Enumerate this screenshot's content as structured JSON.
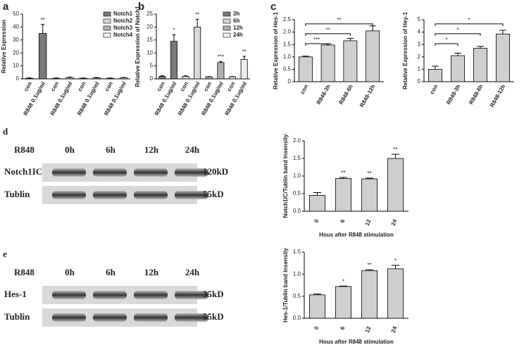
{
  "chart_data": [
    {
      "type": "bar",
      "panel": "a",
      "ylabel": "Relative Expression",
      "categories": [
        "con",
        "R848 0.1ug/ml",
        "con",
        "R848 0.1ug/ml",
        "con",
        "R848 0.1ug/ml",
        "con",
        "R848 0.1ug/ml"
      ],
      "series": [
        {
          "name": "Notch1",
          "color": "#7a7a7a",
          "values": [
            0.5,
            35,
            null,
            null,
            null,
            null,
            null,
            null
          ],
          "errors": [
            0.3,
            7,
            null,
            null,
            null,
            null,
            null,
            null
          ]
        },
        {
          "name": "Notch2",
          "color": "#d8d8d8",
          "values": [
            null,
            null,
            0.5,
            1,
            null,
            null,
            null,
            null
          ],
          "errors": [
            null,
            null,
            0.2,
            0.4,
            null,
            null,
            null,
            null
          ]
        },
        {
          "name": "Notch3",
          "color": "#b0b0b0",
          "values": [
            null,
            null,
            null,
            null,
            0.5,
            0.8,
            null,
            null
          ],
          "errors": [
            null,
            null,
            null,
            null,
            0.2,
            0.3,
            null,
            null
          ]
        },
        {
          "name": "Notch4",
          "color": "#efefef",
          "values": [
            null,
            null,
            null,
            null,
            null,
            null,
            0.5,
            0.8
          ],
          "errors": [
            null,
            null,
            null,
            null,
            null,
            null,
            0.2,
            0.3
          ]
        }
      ],
      "significance": [
        null,
        "**",
        null,
        null,
        null,
        null,
        null,
        null
      ],
      "ylim": [
        0,
        50
      ],
      "yticks": [
        0,
        10,
        20,
        30,
        40,
        50
      ],
      "legend": "upper right"
    },
    {
      "type": "bar",
      "panel": "b",
      "ylabel": "Relative Expression of Notch1",
      "categories": [
        "con",
        "R848 0.1ug/ml",
        "con",
        "R848 0.1ug/ml",
        "con",
        "R848 0.1ug/ml",
        "con",
        "R848 0.1ug/ml"
      ],
      "series": [
        {
          "name": "3h",
          "color": "#7a7a7a",
          "values": [
            1,
            14.5,
            null,
            null,
            null,
            null,
            null,
            null
          ],
          "errors": [
            0.2,
            2.5,
            null,
            null,
            null,
            null,
            null,
            null
          ]
        },
        {
          "name": "6h",
          "color": "#d8d8d8",
          "values": [
            null,
            null,
            1,
            20,
            null,
            null,
            null,
            null
          ],
          "errors": [
            null,
            null,
            0.2,
            3,
            null,
            null,
            null,
            null
          ]
        },
        {
          "name": "12h",
          "color": "#b0b0b0",
          "values": [
            null,
            null,
            null,
            null,
            0.8,
            6.3,
            null,
            null
          ],
          "errors": [
            null,
            null,
            null,
            null,
            0.1,
            0.4,
            null,
            null
          ]
        },
        {
          "name": "24h",
          "color": "#efefef",
          "values": [
            null,
            null,
            null,
            null,
            null,
            null,
            0.8,
            7.5
          ],
          "errors": [
            null,
            null,
            null,
            null,
            null,
            null,
            0.1,
            1.2
          ]
        }
      ],
      "significance": [
        null,
        "*",
        null,
        "**",
        null,
        "***",
        null,
        "**"
      ],
      "ylim": [
        0,
        25
      ],
      "yticks": [
        0,
        5,
        10,
        15,
        20,
        25
      ],
      "legend": "upper right"
    },
    {
      "type": "bar",
      "panel": "c",
      "ylabel": "Relative Expression of Hes-1",
      "categories": [
        "con",
        "R848-3h",
        "R848-6h",
        "R848-12h"
      ],
      "color": "#cfcfcf",
      "values": [
        1.0,
        1.48,
        1.65,
        2.05
      ],
      "errors": [
        0.03,
        0.05,
        0.1,
        0.2
      ],
      "significance": [
        null,
        "***",
        "**",
        "**"
      ],
      "brackets": true,
      "ylim": [
        0,
        2.5
      ],
      "yticks": [
        0,
        0.5,
        {
          "value": 1,
          "label": "1.0"
        },
        1.5,
        {
          "value": 2,
          "label": "2.0"
        },
        2.5
      ]
    },
    {
      "type": "bar",
      "ylabel": "Relative Expression of Hey-1",
      "categories": [
        "con",
        "R848-3h",
        "R848-6h",
        "R848-12h"
      ],
      "color": "#cfcfcf",
      "values": [
        1.0,
        2.1,
        2.7,
        3.85
      ],
      "errors": [
        0.25,
        0.2,
        0.15,
        0.3
      ],
      "significance": [
        null,
        "*",
        "*",
        "*"
      ],
      "brackets": true,
      "ylim": [
        0,
        5
      ],
      "yticks": [
        0,
        1,
        2,
        3,
        4,
        5
      ]
    },
    {
      "type": "bar",
      "ylabel": "Notch1IC/Tublin band Insensity",
      "xlabel": "Hous after R848 stimulation",
      "categories": [
        "0",
        "6",
        "12",
        "24"
      ],
      "color": "#cfcfcf",
      "values": [
        0.45,
        0.93,
        0.92,
        1.5
      ],
      "errors": [
        0.08,
        0.03,
        0.02,
        0.12
      ],
      "significance": [
        null,
        "**",
        "**",
        "**"
      ],
      "ylim": [
        0,
        2
      ],
      "yticks": [
        {
          "value": 0,
          "label": "0.0"
        },
        0.5,
        {
          "value": 1,
          "label": "1.0"
        },
        1.5,
        {
          "value": 2,
          "label": "2.0"
        }
      ]
    },
    {
      "type": "bar",
      "ylabel": "Hes-1/Tublin band Insensity",
      "xlabel": "Hous after R848 stimulation",
      "categories": [
        "0",
        "6",
        "12",
        "24"
      ],
      "color": "#cfcfcf",
      "values": [
        0.53,
        0.72,
        1.08,
        1.12
      ],
      "errors": [
        0.02,
        0.01,
        0.02,
        0.08
      ],
      "significance": [
        null,
        "*",
        "**",
        "*"
      ],
      "ylim": [
        0,
        1.5
      ],
      "yticks": [
        {
          "value": 0,
          "label": "0.0"
        },
        0.5,
        {
          "value": 1,
          "label": "1.0"
        },
        1.5
      ]
    }
  ],
  "blots": [
    {
      "panel": "d",
      "treatment": "R848",
      "lanes": [
        "0h",
        "6h",
        "12h",
        "24h"
      ],
      "rows": [
        {
          "name": "Notch1IC",
          "size": "120kD"
        },
        {
          "name": "Tublin",
          "size": "55kD"
        }
      ]
    },
    {
      "panel": "e",
      "treatment": "R848",
      "lanes": [
        "0h",
        "6h",
        "12h",
        "24h"
      ],
      "rows": [
        {
          "name": "Hes-1",
          "size": "35kD"
        },
        {
          "name": "Tublin",
          "size": "55kD"
        }
      ]
    }
  ]
}
